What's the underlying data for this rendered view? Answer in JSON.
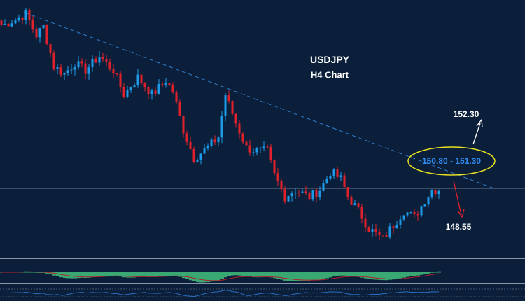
{
  "chart_data": {
    "type": "candlestick",
    "title": "USDJPY",
    "subtitle": "H4 Chart",
    "ylim": [
      148.24,
      154.87
    ],
    "bars_visible": 126,
    "close_waypoints": {
      "index": [
        1,
        7,
        10,
        12,
        15,
        18,
        21,
        24,
        28,
        32,
        35,
        39,
        43,
        47,
        49,
        52,
        55,
        59,
        62,
        64,
        67,
        70,
        73,
        76,
        78,
        81,
        84,
        88,
        91,
        94,
        97,
        99,
        102,
        105,
        109,
        112,
        115,
        118,
        121,
        123,
        125
      ],
      "price": [
        154.24,
        154.51,
        153.96,
        154.18,
        153.15,
        152.96,
        153.24,
        153.05,
        153.42,
        153.05,
        152.42,
        152.87,
        152.42,
        152.78,
        152.51,
        151.51,
        150.78,
        151.05,
        151.33,
        152.42,
        151.69,
        151.05,
        150.96,
        150.96,
        150.33,
        149.78,
        149.96,
        149.78,
        149.96,
        150.42,
        150.24,
        149.78,
        149.42,
        148.96,
        148.69,
        149.05,
        149.42,
        149.24,
        149.69,
        149.96,
        149.96
      ]
    },
    "trendline": {
      "start": {
        "index": 7,
        "price": 154.55
      },
      "end": {
        "index": 141,
        "price": 150.0
      }
    },
    "horizontal_level": 150.0,
    "annotations": {
      "zone": "150.80 - 151.30",
      "upside_target": "152.30",
      "downside_target": "148.55"
    },
    "indicators": [
      "MACD histogram with signal line",
      "oscillator line"
    ]
  },
  "colors": {
    "background": "#0b1f3a",
    "bull": "#1e9be8",
    "bear": "#e0202a",
    "trendline": "#2f7fd0",
    "zone_ellipse": "#e8e020",
    "zone_text": "#2e8cf0",
    "macd_hist": "#3aa872",
    "macd_signal": "#b0202a",
    "osc": "#2a6fc0"
  }
}
